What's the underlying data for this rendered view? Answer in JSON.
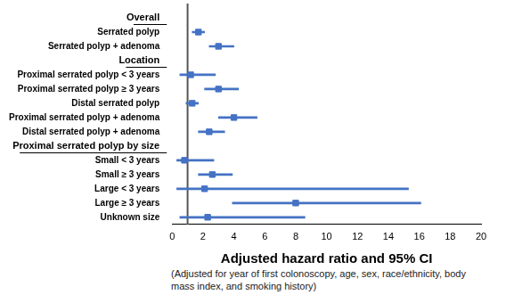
{
  "chart_data": {
    "type": "forest",
    "orientation": "horizontal",
    "categories": [
      "Overall",
      "Serrated polyp",
      "Serrated polyp + adenoma",
      "Location",
      "Proximal serrated polyp < 3 years",
      "Proximal serrated polyp ≥ 3 years",
      "Distal serrated polyp",
      "Proximal serrated polyp + adenoma",
      "Distal serrated polyp + adenoma",
      "Proximal serrated polyp by size",
      "Small < 3 years",
      "Small ≥ 3 years",
      "Large < 3 years",
      "Large ≥ 3 years",
      "Unknown size"
    ],
    "values": [
      null,
      1.7,
      3.0,
      null,
      1.2,
      3.0,
      1.3,
      4.0,
      2.4,
      null,
      0.8,
      2.6,
      2.1,
      8.0,
      2.3
    ],
    "ci_lower": [
      null,
      1.3,
      2.4,
      null,
      0.5,
      2.1,
      0.9,
      3.0,
      1.7,
      null,
      0.3,
      1.7,
      0.3,
      3.9,
      0.5
    ],
    "ci_upper": [
      null,
      2.1,
      4.0,
      null,
      2.8,
      4.3,
      1.7,
      5.5,
      3.4,
      null,
      2.7,
      3.9,
      15.3,
      16.1,
      8.6
    ],
    "reference_value": 1,
    "color": "#4472c4",
    "marker": "square",
    "xlabel": "Adjusted hazard ratio and 95% CI",
    "note": "(Adjusted for year of first colonoscopy, age, sex, race/ethnicity, body mass index, and smoking history)",
    "xlim": [
      0,
      20
    ],
    "xticks": [
      0,
      2,
      4,
      6,
      8,
      10,
      12,
      14,
      16,
      18,
      20
    ],
    "grid": false,
    "legend": false
  }
}
